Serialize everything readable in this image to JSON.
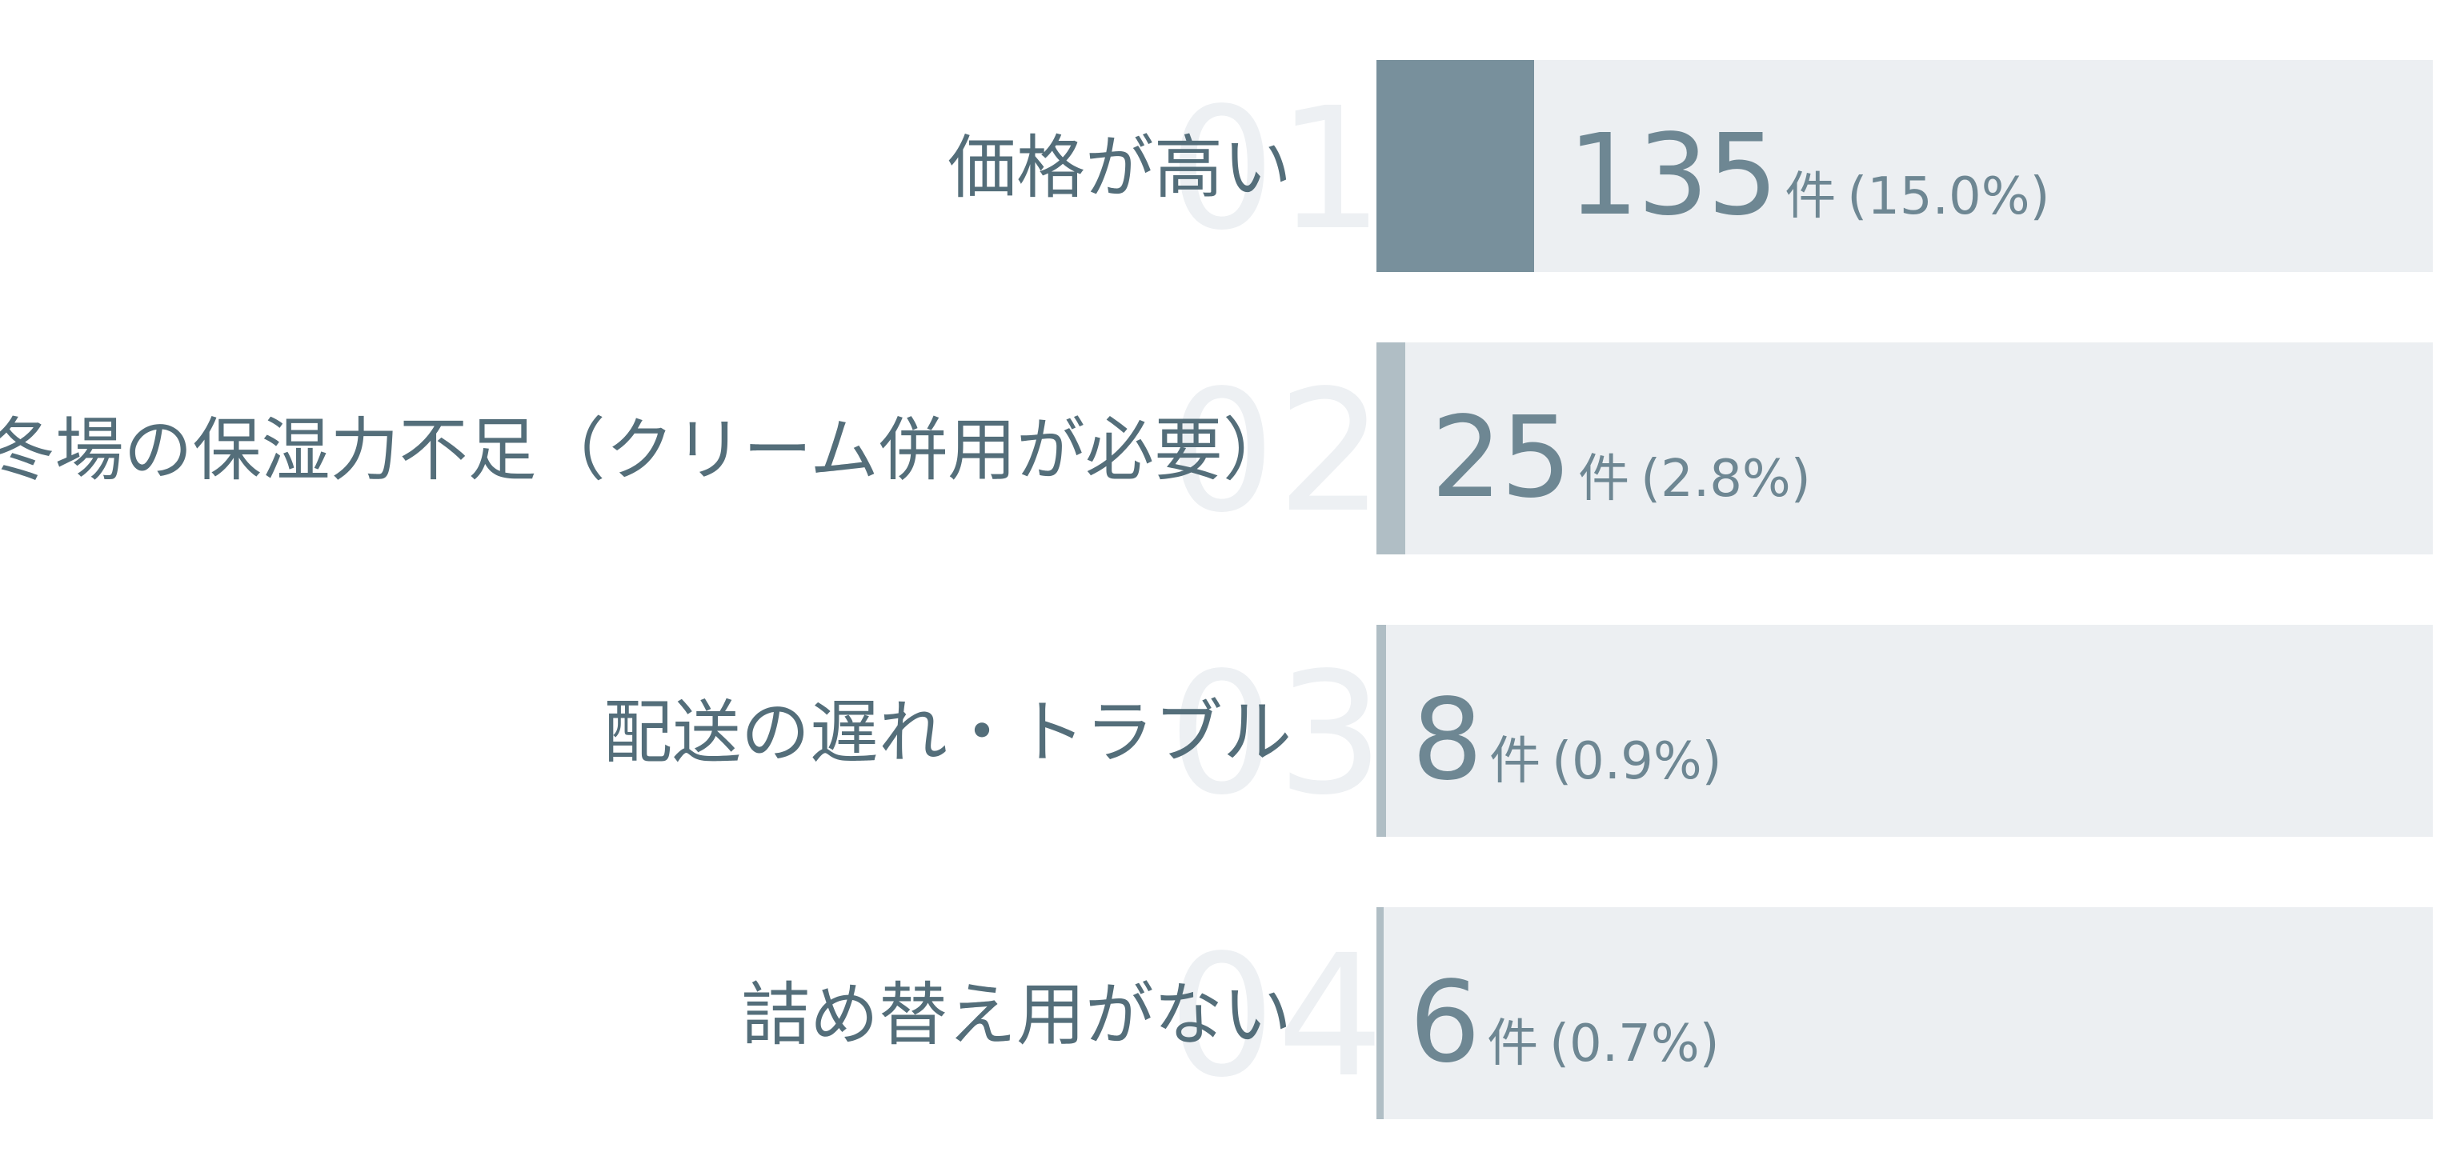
{
  "chart_data": {
    "type": "bar",
    "orientation": "horizontal",
    "grid": false,
    "legend": "none",
    "unit": "件",
    "bars": [
      {
        "rank": "01",
        "label": "価格が高い",
        "count": "135",
        "percent": "(15.0%)",
        "value": 135
      },
      {
        "rank": "02",
        "label": "冬場の保湿力不足（クリーム併用が必要）",
        "count": "25",
        "percent": "(2.8%)",
        "value": 25
      },
      {
        "rank": "03",
        "label": "配送の遅れ・トラブル",
        "count": "8",
        "percent": "(0.9%)",
        "value": 8
      },
      {
        "rank": "04",
        "label": "詰め替え用がない",
        "count": "6",
        "percent": "(0.7%)",
        "value": 6
      }
    ],
    "colors": {
      "top_bar": "#78909c",
      "other_bars": "#b0bec5",
      "track": "#eceff2",
      "label_text": "#546e7a",
      "value_text": "#6e8793",
      "rank_text": "#edf0f3"
    }
  }
}
